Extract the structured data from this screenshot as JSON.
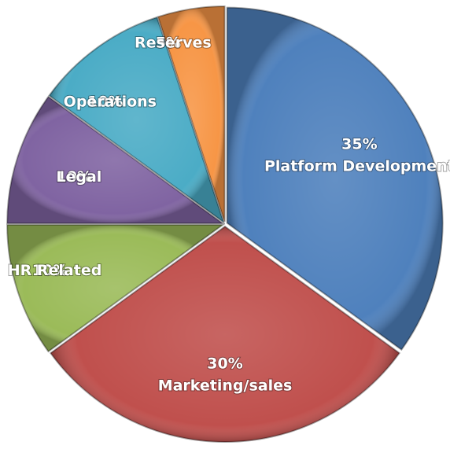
{
  "chart_data": {
    "type": "pie",
    "categories": [
      "Platform Development",
      "Marketing/sales",
      "HR Related",
      "Legal",
      "Operations",
      "Reserves"
    ],
    "values": [
      35,
      30,
      10,
      10,
      10,
      5
    ],
    "value_labels": [
      "35%",
      "30%",
      "10%",
      "10%",
      "10%",
      "5%"
    ],
    "colors": [
      "#4f81bd",
      "#c0504d",
      "#9bbb59",
      "#8064a2",
      "#4bacc6",
      "#f79646"
    ]
  }
}
